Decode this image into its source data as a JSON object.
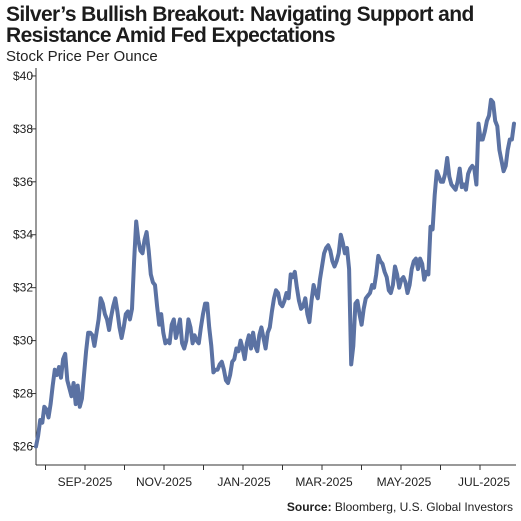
{
  "title": "Silver’s Bullish Breakout: Navigating Support and Resistance Amid Fed Expectations",
  "subtitle": "Stock Price Per Ounce",
  "source_label": "Source:",
  "source_text": "Bloomberg, U.S. Global Investors",
  "colors": {
    "line": "#5b72a3",
    "axis": "#333333"
  },
  "chart_data": {
    "type": "line",
    "title": "Silver’s Bullish Breakout: Navigating Support and Resistance Amid Fed Expectations",
    "subtitle": "Stock Price Per Ounce",
    "xlabel": "",
    "ylabel": "",
    "ylim": [
      25.3,
      40.3
    ],
    "y_ticks": [
      26,
      28,
      30,
      32,
      34,
      36,
      38,
      40
    ],
    "y_tick_labels": [
      "$26",
      "$28",
      "$30",
      "$32",
      "$34",
      "$36",
      "$38",
      "$40"
    ],
    "x_tick_labels": [
      "SEP-2025",
      "NOV-2025",
      "JAN-2025",
      "MAR-2025",
      "MAY-2025",
      "JUL-2025"
    ],
    "grid": false,
    "legend": "none",
    "series": [
      {
        "values": [
          26.0,
          26.4,
          27.0,
          26.9,
          27.5,
          27.4,
          27.1,
          27.6,
          28.3,
          28.9,
          28.7,
          29.0,
          28.6,
          29.3,
          29.5,
          28.5,
          28.2,
          27.9,
          28.4,
          27.6,
          28.3,
          27.5,
          27.8,
          28.7,
          29.6,
          30.3,
          30.3,
          30.2,
          29.8,
          30.3,
          30.8,
          31.6,
          31.4,
          31.0,
          30.8,
          30.4,
          30.9,
          31.3,
          31.6,
          31.1,
          30.5,
          30.1,
          30.5,
          31.0,
          31.1,
          30.8,
          31.2,
          33.0,
          34.5,
          33.8,
          33.4,
          33.3,
          33.8,
          34.1,
          33.4,
          32.5,
          32.2,
          32.1,
          31.3,
          30.6,
          31.0,
          30.3,
          29.9,
          30.0,
          29.9,
          30.6,
          30.8,
          30.1,
          30.4,
          30.8,
          29.9,
          29.7,
          30.0,
          30.8,
          30.5,
          29.9,
          30.2,
          30.0,
          29.9,
          30.5,
          31.0,
          31.4,
          31.4,
          30.5,
          29.8,
          28.8,
          28.9,
          28.9,
          29.1,
          29.2,
          28.9,
          28.5,
          28.4,
          28.7,
          29.2,
          29.3,
          29.7,
          29.6,
          30.0,
          29.7,
          29.3,
          29.9,
          30.2,
          29.7,
          30.3,
          29.8,
          29.6,
          30.2,
          30.5,
          30.1,
          29.7,
          30.3,
          30.5,
          31.1,
          31.6,
          31.9,
          31.8,
          31.4,
          31.3,
          31.5,
          31.8,
          31.6,
          32.5,
          32.4,
          32.6,
          32.0,
          31.5,
          31.2,
          31.3,
          31.6,
          31.0,
          30.7,
          31.5,
          32.1,
          31.8,
          31.6,
          32.3,
          32.8,
          33.3,
          33.5,
          33.6,
          33.4,
          33.0,
          32.8,
          33.0,
          33.3,
          34.0,
          33.7,
          33.3,
          33.5,
          32.7,
          29.1,
          29.8,
          31.4,
          31.5,
          31.0,
          30.6,
          31.2,
          31.6,
          31.7,
          31.8,
          32.1,
          32.0,
          32.5,
          33.2,
          33.0,
          32.9,
          32.6,
          32.4,
          31.9,
          31.8,
          32.1,
          32.8,
          32.5,
          32.0,
          32.3,
          32.4,
          32.2,
          31.8,
          32.1,
          32.7,
          33.0,
          33.1,
          32.7,
          33.1,
          32.9,
          32.3,
          32.6,
          32.5,
          34.3,
          34.2,
          35.5,
          36.4,
          36.2,
          36.0,
          36.0,
          36.3,
          36.9,
          36.2,
          35.9,
          35.8,
          35.7,
          36.0,
          36.5,
          35.8,
          35.9,
          35.7,
          36.3,
          36.5,
          36.6,
          36.5,
          35.9,
          38.2,
          37.6,
          37.6,
          37.9,
          38.3,
          38.5,
          39.1,
          39.0,
          38.3,
          38.1,
          37.2,
          36.8,
          36.4,
          36.6,
          37.2,
          37.6,
          37.6,
          38.2
        ]
      }
    ]
  }
}
